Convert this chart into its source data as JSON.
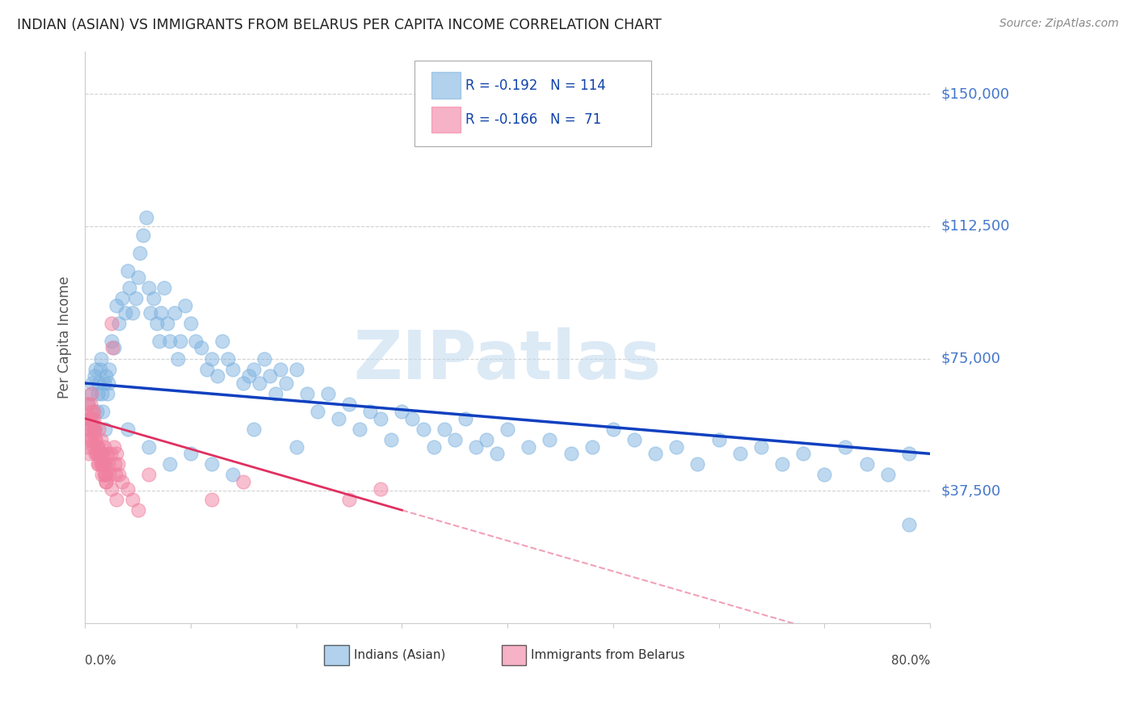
{
  "title": "INDIAN (ASIAN) VS IMMIGRANTS FROM BELARUS PER CAPITA INCOME CORRELATION CHART",
  "source": "Source: ZipAtlas.com",
  "ylabel": "Per Capita Income",
  "yticks": [
    0,
    37500,
    75000,
    112500,
    150000
  ],
  "ytick_labels": [
    "",
    "$37,500",
    "$75,000",
    "$112,500",
    "$150,000"
  ],
  "xmin": 0.0,
  "xmax": 0.8,
  "ymin": 0,
  "ymax": 162000,
  "legend_indian_r": "R = -0.192",
  "legend_indian_n": "N = 114",
  "legend_belarus_r": "R = -0.166",
  "legend_belarus_n": "N =  71",
  "legend_indian_label": "Indians (Asian)",
  "legend_belarus_label": "Immigrants from Belarus",
  "indian_color": "#7EB3E0",
  "belarus_color": "#F080A0",
  "trend_indian_color": "#1040C0",
  "trend_belarus_color": "#E03060",
  "watermark_color": "#C5DCF0",
  "background_color": "#FFFFFF",
  "indian_x": [
    0.003,
    0.005,
    0.006,
    0.007,
    0.008,
    0.009,
    0.01,
    0.011,
    0.012,
    0.013,
    0.014,
    0.015,
    0.016,
    0.017,
    0.018,
    0.019,
    0.02,
    0.021,
    0.022,
    0.023,
    0.025,
    0.027,
    0.03,
    0.032,
    0.035,
    0.038,
    0.04,
    0.042,
    0.045,
    0.048,
    0.05,
    0.052,
    0.055,
    0.058,
    0.06,
    0.062,
    0.065,
    0.068,
    0.07,
    0.072,
    0.075,
    0.078,
    0.08,
    0.085,
    0.088,
    0.09,
    0.095,
    0.1,
    0.105,
    0.11,
    0.115,
    0.12,
    0.125,
    0.13,
    0.135,
    0.14,
    0.15,
    0.155,
    0.16,
    0.165,
    0.17,
    0.175,
    0.18,
    0.185,
    0.19,
    0.2,
    0.21,
    0.22,
    0.23,
    0.24,
    0.25,
    0.26,
    0.27,
    0.28,
    0.29,
    0.3,
    0.31,
    0.32,
    0.33,
    0.34,
    0.35,
    0.36,
    0.37,
    0.38,
    0.39,
    0.4,
    0.42,
    0.44,
    0.46,
    0.48,
    0.5,
    0.52,
    0.54,
    0.56,
    0.58,
    0.6,
    0.62,
    0.64,
    0.66,
    0.68,
    0.7,
    0.72,
    0.74,
    0.76,
    0.78,
    0.04,
    0.06,
    0.08,
    0.1,
    0.12,
    0.14,
    0.16,
    0.2,
    0.78
  ],
  "indian_y": [
    62000,
    58000,
    65000,
    68000,
    55000,
    70000,
    72000,
    60000,
    65000,
    68000,
    72000,
    75000,
    65000,
    60000,
    68000,
    55000,
    70000,
    65000,
    68000,
    72000,
    80000,
    78000,
    90000,
    85000,
    92000,
    88000,
    100000,
    95000,
    88000,
    92000,
    98000,
    105000,
    110000,
    115000,
    95000,
    88000,
    92000,
    85000,
    80000,
    88000,
    95000,
    85000,
    80000,
    88000,
    75000,
    80000,
    90000,
    85000,
    80000,
    78000,
    72000,
    75000,
    70000,
    80000,
    75000,
    72000,
    68000,
    70000,
    72000,
    68000,
    75000,
    70000,
    65000,
    72000,
    68000,
    72000,
    65000,
    60000,
    65000,
    58000,
    62000,
    55000,
    60000,
    58000,
    52000,
    60000,
    58000,
    55000,
    50000,
    55000,
    52000,
    58000,
    50000,
    52000,
    48000,
    55000,
    50000,
    52000,
    48000,
    50000,
    55000,
    52000,
    48000,
    50000,
    45000,
    52000,
    48000,
    50000,
    45000,
    48000,
    42000,
    50000,
    45000,
    42000,
    48000,
    55000,
    50000,
    45000,
    48000,
    45000,
    42000,
    55000,
    50000,
    28000
  ],
  "belarus_x": [
    0.002,
    0.003,
    0.004,
    0.005,
    0.006,
    0.007,
    0.008,
    0.009,
    0.01,
    0.011,
    0.012,
    0.013,
    0.014,
    0.015,
    0.016,
    0.017,
    0.018,
    0.019,
    0.02,
    0.021,
    0.022,
    0.023,
    0.024,
    0.025,
    0.026,
    0.027,
    0.028,
    0.029,
    0.03,
    0.031,
    0.032,
    0.003,
    0.004,
    0.005,
    0.006,
    0.007,
    0.008,
    0.009,
    0.01,
    0.011,
    0.012,
    0.013,
    0.014,
    0.015,
    0.016,
    0.017,
    0.018,
    0.019,
    0.02,
    0.003,
    0.004,
    0.005,
    0.007,
    0.008,
    0.01,
    0.012,
    0.014,
    0.016,
    0.018,
    0.02,
    0.025,
    0.03,
    0.035,
    0.04,
    0.045,
    0.05,
    0.06,
    0.12,
    0.15,
    0.25,
    0.28
  ],
  "belarus_y": [
    52000,
    58000,
    55000,
    62000,
    65000,
    58000,
    60000,
    55000,
    52000,
    48000,
    50000,
    55000,
    48000,
    52000,
    48000,
    45000,
    50000,
    45000,
    42000,
    48000,
    45000,
    42000,
    48000,
    85000,
    78000,
    50000,
    45000,
    42000,
    48000,
    45000,
    42000,
    50000,
    48000,
    52000,
    55000,
    60000,
    58000,
    55000,
    52000,
    48000,
    50000,
    45000,
    48000,
    45000,
    42000,
    48000,
    45000,
    42000,
    40000,
    62000,
    58000,
    55000,
    52000,
    50000,
    48000,
    45000,
    48000,
    45000,
    42000,
    40000,
    38000,
    35000,
    40000,
    38000,
    35000,
    32000,
    42000,
    35000,
    40000,
    35000,
    38000
  ]
}
